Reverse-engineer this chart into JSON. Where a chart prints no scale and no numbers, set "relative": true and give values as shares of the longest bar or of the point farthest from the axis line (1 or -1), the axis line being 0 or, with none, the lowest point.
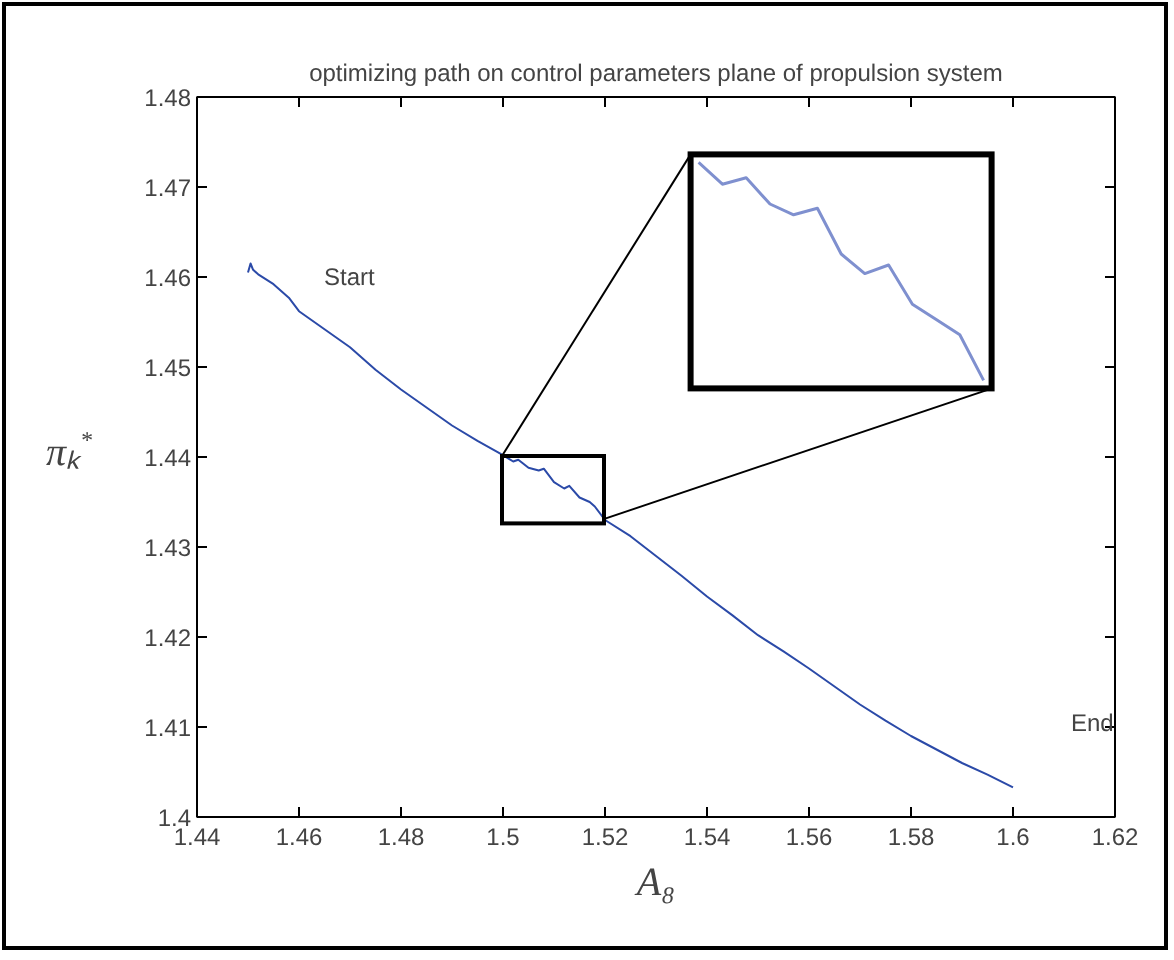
{
  "chart_data": [
    {
      "type": "line",
      "title": "optimizing path on control parameters plane of propulsion system",
      "xlabel": "A₈",
      "ylabel": "πₖ$^{*}$",
      "x": [
        1.45,
        1.4505,
        1.451,
        1.452,
        1.455,
        1.458,
        1.46,
        1.465,
        1.47,
        1.475,
        1.48,
        1.485,
        1.49,
        1.495,
        1.5,
        1.502,
        1.503,
        1.505,
        1.507,
        1.508,
        1.51,
        1.512,
        1.513,
        1.515,
        1.517,
        1.518,
        1.52,
        1.525,
        1.53,
        1.535,
        1.54,
        1.545,
        1.55,
        1.555,
        1.56,
        1.565,
        1.57,
        1.575,
        1.58,
        1.585,
        1.59,
        1.595,
        1.6
      ],
      "series": [
        {
          "color": "#2b4aa8",
          "values": [
            1.4605,
            1.4615,
            1.4608,
            1.4603,
            1.4592,
            1.4577,
            1.4562,
            1.4542,
            1.4522,
            1.4497,
            1.4475,
            1.4455,
            1.4435,
            1.4418,
            1.4402,
            1.4395,
            1.4397,
            1.4388,
            1.4385,
            1.4387,
            1.4372,
            1.4365,
            1.4368,
            1.4355,
            1.435,
            1.4345,
            1.433,
            1.4312,
            1.429,
            1.4268,
            1.4245,
            1.4224,
            1.4202,
            1.4184,
            1.4165,
            1.4145,
            1.4125,
            1.4107,
            1.409,
            1.4075,
            1.406,
            1.4047,
            1.4033
          ]
        }
      ],
      "annotations": [
        "Start",
        "End"
      ],
      "xlim": [
        1.44,
        1.62
      ],
      "xticks": [
        1.44,
        1.46,
        1.48,
        1.5,
        1.52,
        1.54,
        1.56,
        1.58,
        1.6,
        1.62
      ],
      "ylim": [
        1.4,
        1.48
      ],
      "yticks": [
        1.4,
        1.41,
        1.42,
        1.43,
        1.44,
        1.45,
        1.46,
        1.47,
        1.48
      ],
      "grid": false,
      "marker": "none",
      "line_style": "solid"
    },
    {
      "type": "line",
      "relative": true,
      "categories": [
        null,
        null,
        null,
        null,
        null,
        null,
        null,
        null,
        null,
        null,
        null,
        null,
        null
      ],
      "series": [
        {
          "color": "#7f90cf",
          "values": [
            1.0,
            0.9,
            0.93,
            0.81,
            0.76,
            0.79,
            0.58,
            0.49,
            0.53,
            0.35,
            0.28,
            0.21,
            0.0
          ]
        }
      ]
    }
  ]
}
